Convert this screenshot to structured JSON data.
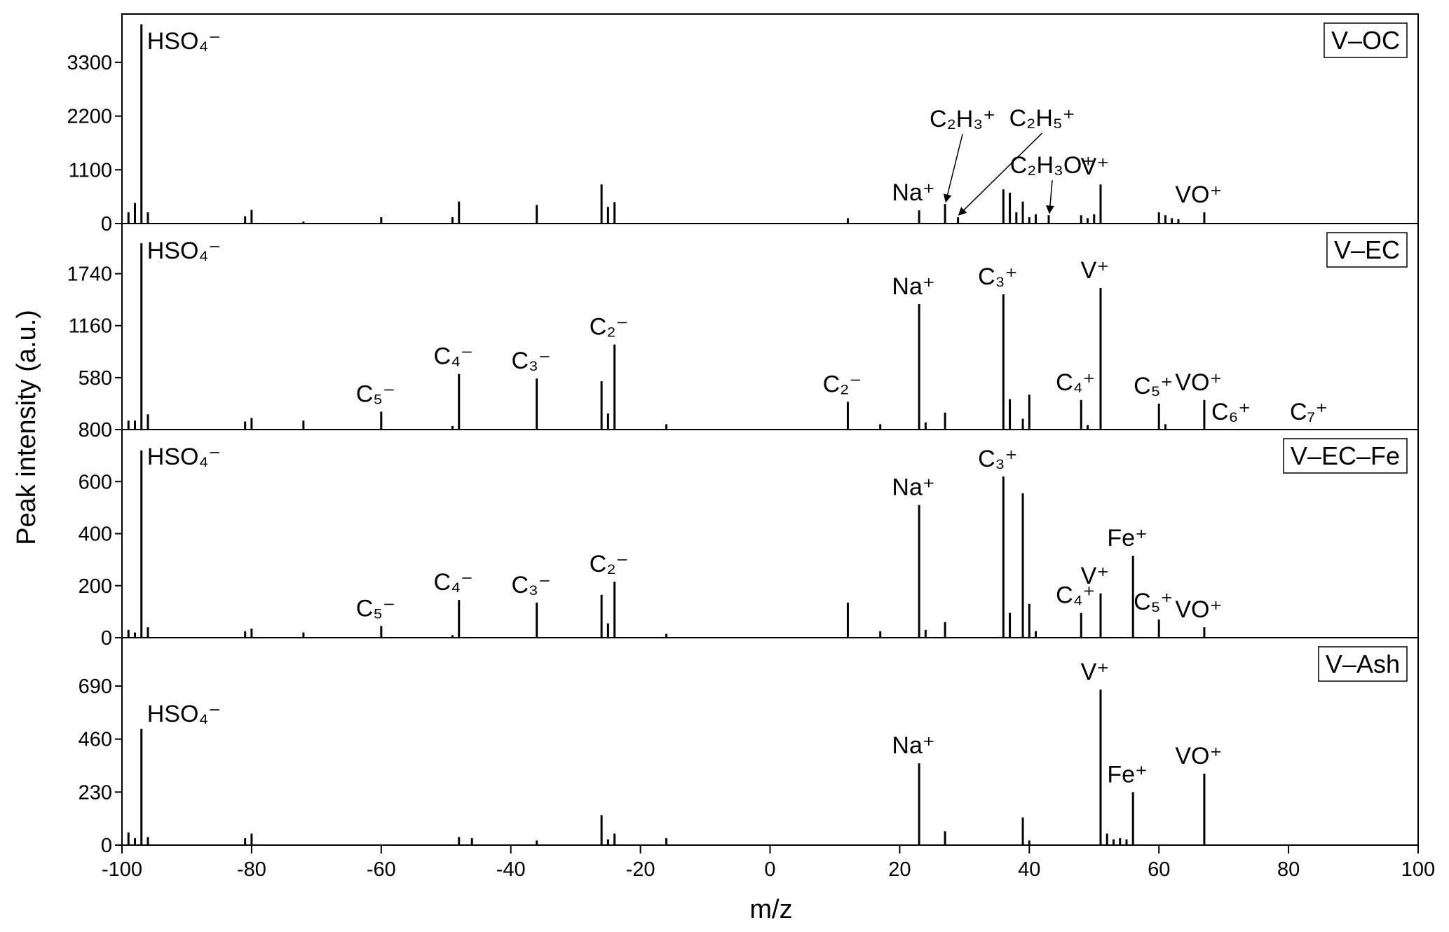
{
  "axes": {
    "xlabel": "m/z",
    "ylabel": "Peak intensity (a.u.)",
    "xlim": [
      -100,
      100
    ],
    "xticks": [
      -100,
      -80,
      -60,
      -40,
      -20,
      0,
      20,
      40,
      60,
      80,
      100
    ]
  },
  "chart_data": [
    {
      "type": "bar",
      "title": "V–OC",
      "color": "#000000",
      "ylim": [
        0,
        4290
      ],
      "yticks": [
        0,
        1100,
        2200,
        3300
      ],
      "x": [
        -99,
        -98,
        -97,
        -96,
        -81,
        -80,
        -72,
        -60,
        -49,
        -48,
        -36,
        -26,
        -25,
        -24,
        12,
        23,
        27,
        29,
        36,
        37,
        38,
        39,
        40,
        41,
        43,
        48,
        49,
        50,
        51,
        60,
        61,
        62,
        63,
        67
      ],
      "values": [
        230,
        420,
        4080,
        230,
        150,
        280,
        40,
        130,
        130,
        450,
        380,
        800,
        340,
        440,
        110,
        270,
        400,
        130,
        700,
        630,
        230,
        450,
        130,
        190,
        170,
        170,
        110,
        190,
        800,
        230,
        170,
        110,
        90,
        230
      ],
      "annotations": [
        {
          "text": "HSO₄⁻",
          "x": -97
        },
        {
          "text": "Na⁺",
          "x": 23
        },
        {
          "text": "C₂H₃⁺",
          "x": 27,
          "arrow": true
        },
        {
          "text": "C₂H₅⁺",
          "x": 29,
          "arrow": true
        },
        {
          "text": "C₂H₃O⁺",
          "x": 43,
          "arrow": true
        },
        {
          "text": "V⁺",
          "x": 51
        },
        {
          "text": "VO⁺",
          "x": 67
        }
      ]
    },
    {
      "type": "bar",
      "title": "V–EC",
      "color": "#000000",
      "ylim": [
        0,
        2300
      ],
      "yticks": [
        580,
        1160,
        1740
      ],
      "x": [
        -99,
        -98,
        -97,
        -96,
        -81,
        -80,
        -72,
        -60,
        -49,
        -48,
        -36,
        -26,
        -25,
        -24,
        -16,
        12,
        17,
        23,
        24,
        27,
        36,
        37,
        39,
        40,
        48,
        49,
        51,
        60,
        61,
        67
      ],
      "values": [
        100,
        100,
        2080,
        170,
        90,
        130,
        100,
        200,
        40,
        620,
        570,
        540,
        180,
        950,
        60,
        310,
        60,
        1400,
        80,
        190,
        1510,
        340,
        120,
        390,
        330,
        50,
        1580,
        290,
        60,
        330
      ],
      "annotations": [
        {
          "text": "HSO₄⁻",
          "x": -97
        },
        {
          "text": "C₅⁻",
          "x": -60
        },
        {
          "text": "C₄⁻",
          "x": -48
        },
        {
          "text": "C₃⁻",
          "x": -36
        },
        {
          "text": "C₂⁻",
          "x": -24
        },
        {
          "text": "C₂⁻",
          "x": 12
        },
        {
          "text": "Na⁺",
          "x": 23
        },
        {
          "text": "C₃⁺",
          "x": 36
        },
        {
          "text": "C₄⁺",
          "x": 48
        },
        {
          "text": "V⁺",
          "x": 51
        },
        {
          "text": "C₅⁺",
          "x": 60
        },
        {
          "text": "VO⁺",
          "x": 67
        },
        {
          "text": "C₆⁺",
          "x": 72
        },
        {
          "text": "C₇⁺",
          "x": 84
        }
      ]
    },
    {
      "type": "bar",
      "title": "V–EC–Fe",
      "color": "#000000",
      "ylim": [
        0,
        800
      ],
      "yticks": [
        0,
        200,
        400,
        600,
        800
      ],
      "x": [
        -99,
        -98,
        -97,
        -96,
        -81,
        -80,
        -72,
        -60,
        -49,
        -48,
        -36,
        -26,
        -25,
        -24,
        -16,
        12,
        17,
        23,
        24,
        27,
        36,
        37,
        39,
        40,
        41,
        48,
        51,
        56,
        60,
        67
      ],
      "values": [
        30,
        20,
        720,
        40,
        25,
        35,
        20,
        45,
        10,
        145,
        135,
        165,
        55,
        215,
        15,
        135,
        25,
        510,
        30,
        60,
        620,
        95,
        555,
        130,
        25,
        95,
        170,
        315,
        70,
        40
      ],
      "annotations": [
        {
          "text": "HSO₄⁻",
          "x": -97
        },
        {
          "text": "C₅⁻",
          "x": -60
        },
        {
          "text": "C₄⁻",
          "x": -48
        },
        {
          "text": "C₃⁻",
          "x": -36
        },
        {
          "text": "C₂⁻",
          "x": -24
        },
        {
          "text": "Na⁺",
          "x": 23
        },
        {
          "text": "C₃⁺",
          "x": 36
        },
        {
          "text": "C₄⁺",
          "x": 48
        },
        {
          "text": "V⁺",
          "x": 51
        },
        {
          "text": "Fe⁺",
          "x": 56
        },
        {
          "text": "C₅⁺",
          "x": 60
        },
        {
          "text": "VO⁺",
          "x": 67
        }
      ]
    },
    {
      "type": "bar",
      "title": "V–Ash",
      "color": "#000000",
      "ylim": [
        0,
        900
      ],
      "yticks": [
        0,
        230,
        460,
        690
      ],
      "x": [
        -99,
        -98,
        -97,
        -96,
        -81,
        -80,
        -48,
        -46,
        -36,
        -26,
        -25,
        -24,
        -16,
        23,
        27,
        39,
        40,
        51,
        52,
        53,
        54,
        55,
        56,
        67
      ],
      "values": [
        55,
        30,
        505,
        35,
        30,
        50,
        35,
        30,
        20,
        130,
        25,
        50,
        30,
        355,
        60,
        120,
        20,
        675,
        50,
        25,
        30,
        25,
        230,
        310
      ],
      "annotations": [
        {
          "text": "HSO₄⁻",
          "x": -97
        },
        {
          "text": "Na⁺",
          "x": 23
        },
        {
          "text": "V⁺",
          "x": 51
        },
        {
          "text": "Fe⁺",
          "x": 56
        },
        {
          "text": "VO⁺",
          "x": 67
        }
      ]
    }
  ]
}
